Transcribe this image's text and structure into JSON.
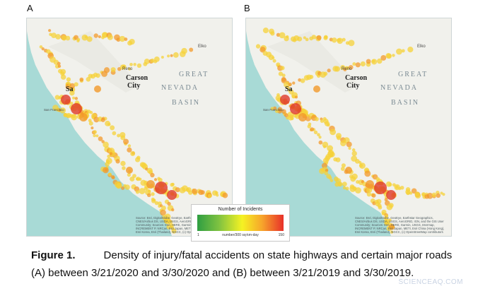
{
  "panels": [
    {
      "label": "A",
      "map": {
        "region_labels": [
          "GREAT",
          "NEVADA",
          "BASIN"
        ],
        "cities": [
          "Reno",
          "Carson",
          "City",
          "Elko",
          "Sa",
          "San Francisco"
        ],
        "attribution": "Source: Esri, DigitalGlobe, GeoEye, Earthstar Geographics, CNES/Airbus DS, USDA, USGS, AeroGRID, IGN, and the GIS User Community; Sources: Esri, HERE, Garmin, USGS, Intermap, INCREMENT P, NRCan, Esri Japan, METI, Esri China (Hong Kong), Esri Korea, Esri (Thailand), NGCC, (c) OpenStreetMap contributors"
      }
    },
    {
      "label": "B",
      "map": {
        "region_labels": [
          "GREAT",
          "NEVADA",
          "BASIN"
        ],
        "cities": [
          "Reno",
          "Carson",
          "City",
          "Elko",
          "Sa",
          "San Francisco"
        ],
        "attribution": "Source: Esri, DigitalGlobe, GeoEye, Earthstar Geographics, CNES/Airbus DS, USDA, USGS, AeroGRID, IGN, and the GIS User Community; Sources: Esri, HERE, Garmin, USGS, Intermap, INCREMENT P, NRCan, Esri Japan, METI, Esri China (Hong Kong), Esri Korea, Esri (Thailand), NGCC, (c) OpenStreetMap contributors"
      }
    }
  ],
  "legend": {
    "title": "Number of Incidents",
    "min": "1",
    "max": "150",
    "unit": "number/300 sq-km-day",
    "colors": [
      "#2f9e42",
      "#7fc241",
      "#f5f223",
      "#f7a52b",
      "#e8302a"
    ]
  },
  "caption": {
    "label": "Figure 1.",
    "line1": "Density of injury/fatal accidents on state highways and certain major roads",
    "line2": "(A) between 3/21/2020 and 3/30/2020 and (B) between 3/21/2019 and 3/30/2019."
  },
  "watermark": "SCIENCEAQ.COM",
  "colors": {
    "ocean": "#a8dad6",
    "land": "#f0f0ec",
    "hotspot_low": "#f5d23a",
    "hotspot_mid": "#f39a2b",
    "hotspot_high": "#e0392a"
  }
}
